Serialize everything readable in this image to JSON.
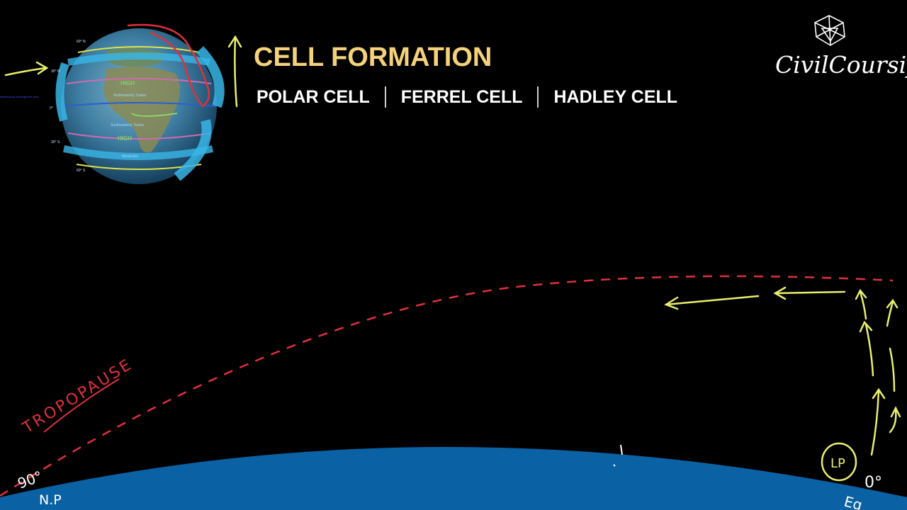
{
  "header": {
    "title": "CELL FORMATION",
    "cells": [
      "POLAR CELL",
      "FERREL CELL",
      "HADLEY CELL"
    ]
  },
  "brand": {
    "name": "CivilCoursify"
  },
  "globe": {
    "labels": {
      "high_north": "HIGH",
      "high_south": "HIGH",
      "trades_north": "Northeasterly Trades",
      "trades_south": "Southeasterly Trades",
      "westerlies": "Westerlies",
      "lat_60n": "60° N",
      "lat_30n": "30° N",
      "lat_0": "0°",
      "lat_30s": "30° S",
      "lat_60s": "60° S",
      "itcz": "Intertropical convergence zone"
    }
  },
  "annotations": {
    "tropopause": "TROPOPAUSE",
    "degree_90": "90°",
    "north_pole": "N.P",
    "low_pressure": "LP",
    "degree_0": "0°",
    "equator": "Eq"
  },
  "colors": {
    "ocean": "#0a62a4",
    "title": "#f5d27a",
    "annotation_yellow": "#e9ee6c",
    "tropopause_red": "#e0313a"
  }
}
